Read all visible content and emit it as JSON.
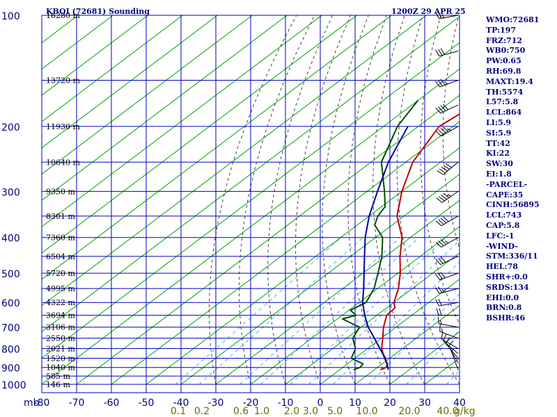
{
  "header": {
    "title": "KBOI (72681) Sounding",
    "time": "1200Z 29 APR 25"
  },
  "colors": {
    "grid_blue": "#0000c0",
    "isotherm_green": "#00a000",
    "temperature_red": "#c00000",
    "dewpoint_green": "#004d00",
    "parcel_blue": "#0000a0",
    "dry_adiabat": "#404040",
    "mixing_ratio": "#4da6ff",
    "mixing_ratio_text": "#6b6b00",
    "label_text": "#000080",
    "wind_barb": "#000000"
  },
  "chart_data": {
    "type": "line",
    "diagram": "Skew-T log-P",
    "pressure_ticks": [
      "100",
      "200",
      "300",
      "400",
      "500",
      "600",
      "700",
      "800",
      "900",
      "1000"
    ],
    "pressure_levels": [
      100,
      200,
      300,
      400,
      500,
      600,
      700,
      800,
      900,
      1000
    ],
    "height_labels": [
      {
        "p": 100,
        "label": "16280 m"
      },
      {
        "p": 150,
        "label": "13720 m"
      },
      {
        "p": 200,
        "label": "11930 m"
      },
      {
        "p": 250,
        "label": "10640 m"
      },
      {
        "p": 300,
        "label": "9350 m"
      },
      {
        "p": 350,
        "label": "8301 m"
      },
      {
        "p": 400,
        "label": "7360 m"
      },
      {
        "p": 450,
        "label": "6504 m"
      },
      {
        "p": 500,
        "label": "5720 m"
      },
      {
        "p": 550,
        "label": "4995 m"
      },
      {
        "p": 600,
        "label": "4322 m"
      },
      {
        "p": 650,
        "label": "3694 m"
      },
      {
        "p": 700,
        "label": "3106 m"
      },
      {
        "p": 750,
        "label": "2550 m"
      },
      {
        "p": 800,
        "label": "2021 m"
      },
      {
        "p": 850,
        "label": "1520 m"
      },
      {
        "p": 900,
        "label": "1040 m"
      },
      {
        "p": 950,
        "label": "585 m"
      },
      {
        "p": 1000,
        "label": "146 m"
      }
    ],
    "mb_label": "mb",
    "temperature_ticks": [
      "-80",
      "-70",
      "-60",
      "-50",
      "-40",
      "-30",
      "-20",
      "-10",
      "0",
      "10",
      "20",
      "30",
      "40"
    ],
    "temperature_values": [
      -80,
      -70,
      -60,
      -50,
      -40,
      -30,
      -20,
      -10,
      0,
      10,
      20,
      30,
      40
    ],
    "mixing_ratio_ticks": [
      {
        "w": 0.1,
        "label": "0.1"
      },
      {
        "w": 0.2,
        "label": "0.2"
      },
      {
        "w": 0.6,
        "label": "0.6"
      },
      {
        "w": 1.0,
        "label": "1.0"
      },
      {
        "w": 2.0,
        "label": "2.0"
      },
      {
        "w": 3.0,
        "label": "3.0"
      },
      {
        "w": 5.0,
        "label": "5.0"
      },
      {
        "w": 10.0,
        "label": "10.0"
      },
      {
        "w": 20.0,
        "label": "20.0"
      },
      {
        "w": 40.0,
        "label": "40.0"
      }
    ],
    "mixing_ratio_unit": "g/kg",
    "xlim": [
      -80,
      40
    ],
    "ylim": [
      1000,
      100
    ],
    "series": [
      {
        "name": "Temperature",
        "points": [
          [
            913,
            11.7
          ],
          [
            900,
            12.5
          ],
          [
            880,
            11.5
          ],
          [
            850,
            8.5
          ],
          [
            800,
            4.0
          ],
          [
            750,
            0.4
          ],
          [
            700,
            -3.6
          ],
          [
            650,
            -7.2
          ],
          [
            620,
            -7.7
          ],
          [
            600,
            -10.0
          ],
          [
            550,
            -14.0
          ],
          [
            500,
            -19.3
          ],
          [
            450,
            -25.8
          ],
          [
            400,
            -32.4
          ],
          [
            350,
            -42.0
          ],
          [
            300,
            -50.0
          ],
          [
            250,
            -58.0
          ],
          [
            200,
            -64.0
          ],
          [
            175,
            -62.0
          ],
          [
            150,
            -52.5
          ],
          [
            130,
            -53.0
          ],
          [
            100,
            -51.0
          ]
        ]
      },
      {
        "name": "Dewpoint",
        "points": [
          [
            913,
            4.0
          ],
          [
            900,
            5.0
          ],
          [
            880,
            4.5
          ],
          [
            850,
            -1.0
          ],
          [
            800,
            -3.5
          ],
          [
            750,
            -8.2
          ],
          [
            700,
            -10.5
          ],
          [
            680,
            -15.0
          ],
          [
            665,
            -18.5
          ],
          [
            650,
            -16.0
          ],
          [
            630,
            -19.5
          ],
          [
            600,
            -18.0
          ],
          [
            550,
            -21.0
          ],
          [
            500,
            -25.7
          ],
          [
            450,
            -31.0
          ],
          [
            400,
            -38.0
          ],
          [
            370,
            -45.0
          ],
          [
            350,
            -47.5
          ],
          [
            330,
            -49.0
          ],
          [
            300,
            -55.0
          ],
          [
            250,
            -67.0
          ],
          [
            200,
            -76.0
          ],
          [
            170,
            -80.0
          ]
        ]
      },
      {
        "name": "Parcel",
        "points": [
          [
            913,
            14.0
          ],
          [
            850,
            8.8
          ],
          [
            800,
            3.5
          ],
          [
            750,
            -2.0
          ],
          [
            700,
            -8.0
          ],
          [
            650,
            -13.5
          ],
          [
            600,
            -19.0
          ],
          [
            550,
            -24.0
          ],
          [
            500,
            -29.7
          ],
          [
            450,
            -36.0
          ],
          [
            400,
            -43.0
          ],
          [
            350,
            -50.0
          ],
          [
            300,
            -57.0
          ],
          [
            250,
            -65.0
          ],
          [
            200,
            -73.0
          ]
        ]
      }
    ],
    "wind_barbs": [
      {
        "p": 913,
        "dir": 340,
        "spd": 5
      },
      {
        "p": 875,
        "dir": 330,
        "spd": 10
      },
      {
        "p": 850,
        "dir": 320,
        "spd": 10
      },
      {
        "p": 825,
        "dir": 310,
        "spd": 10
      },
      {
        "p": 800,
        "dir": 300,
        "spd": 10
      },
      {
        "p": 750,
        "dir": 290,
        "spd": 15
      },
      {
        "p": 700,
        "dir": 280,
        "spd": 15
      },
      {
        "p": 650,
        "dir": 270,
        "spd": 20
      },
      {
        "p": 600,
        "dir": 260,
        "spd": 20
      },
      {
        "p": 550,
        "dir": 255,
        "spd": 25
      },
      {
        "p": 500,
        "dir": 250,
        "spd": 30
      },
      {
        "p": 450,
        "dir": 245,
        "spd": 30
      },
      {
        "p": 400,
        "dir": 240,
        "spd": 35
      },
      {
        "p": 350,
        "dir": 240,
        "spd": 40
      },
      {
        "p": 300,
        "dir": 235,
        "spd": 45
      },
      {
        "p": 250,
        "dir": 230,
        "spd": 50
      },
      {
        "p": 200,
        "dir": 240,
        "spd": 45
      },
      {
        "p": 175,
        "dir": 245,
        "spd": 40
      },
      {
        "p": 150,
        "dir": 250,
        "spd": 35
      },
      {
        "p": 125,
        "dir": 255,
        "spd": 30
      },
      {
        "p": 100,
        "dir": 260,
        "spd": 25
      }
    ]
  },
  "indices": [
    "WMO:72681",
    "TP:197",
    "FRZ:712",
    "WB0:750",
    "PW:0.65",
    "RH:69.8",
    "MAXT:19.4",
    "TH:5574",
    "L57:5.8",
    "LCL:864",
    "LI:5.9",
    "SI:5.9",
    "TT:42",
    "KI:22",
    "SW:30",
    "EI:1.8",
    "-PARCEL-",
    "CAPE:35",
    "CINH:56895",
    "LCL:743",
    "CAP:5.8",
    "LFC:-1",
    "-WIND-",
    "STM:336/11",
    "HEL:78",
    "SHR+:0.0",
    "SRDS:134",
    "EHI:0.0",
    "BRN:0.8",
    "BSHR:46"
  ]
}
